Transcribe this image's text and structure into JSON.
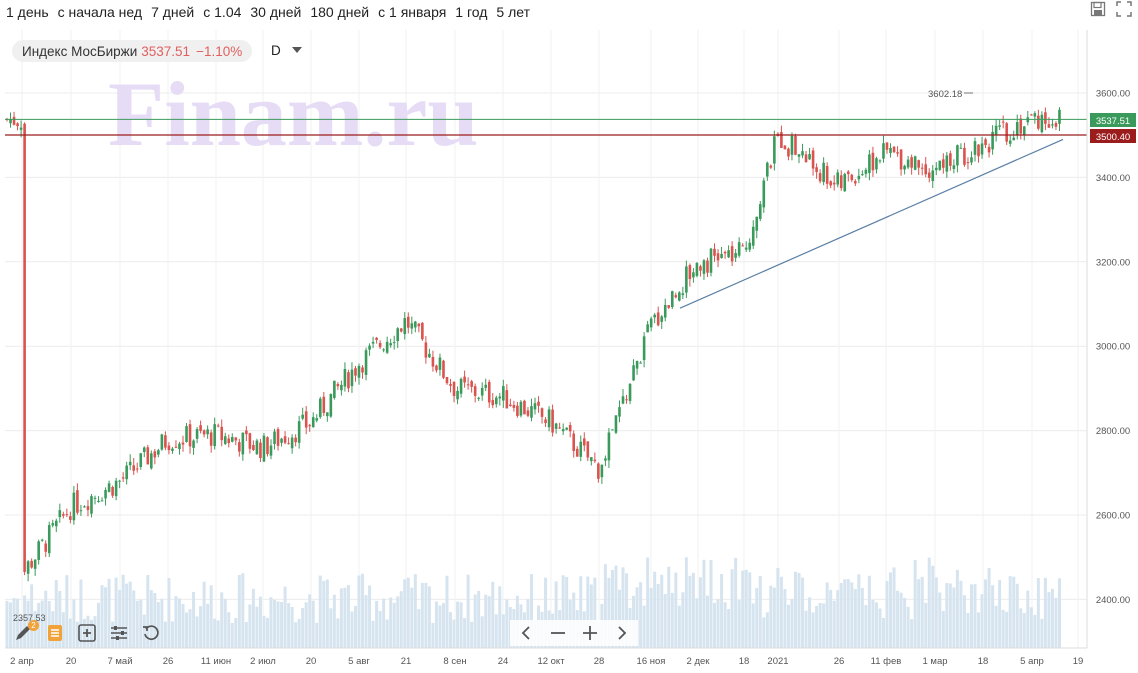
{
  "toolbar": {
    "ranges": [
      "1 день",
      "с начала нед",
      "7 дней",
      "с 1.04",
      "30 дней",
      "180 дней",
      "с 1 января",
      "1 год",
      "5 лет"
    ]
  },
  "instrument": {
    "name": "Индекс МосБиржи",
    "price": "3537.51",
    "change": "−1.10%",
    "interval": "D"
  },
  "watermark": "Finam.ru",
  "icons": {
    "save": "save-icon",
    "fullscreen": "fullscreen-icon",
    "draw": "pencil-icon",
    "indicators": "indicator-list-icon",
    "add_chart": "add-chart-icon",
    "settings": "settings-sliders-icon",
    "reset": "reset-icon",
    "prev": "chevron-left-icon",
    "zoom_out": "minus-icon",
    "zoom_in": "plus-icon",
    "next": "chevron-right-icon"
  },
  "badge": "2",
  "colors": {
    "up": "#3a9a5b",
    "down": "#d9534f",
    "volume": "#d6e4f0",
    "trendline": "#5a7fa6",
    "last_price_line": "#3a9a5b",
    "level_line": "#9b1c1c",
    "watermark": "#e6dcf5"
  },
  "chart_data": {
    "type": "candlestick",
    "y_axis": {
      "ticks": [
        "3600.00",
        "3400.00",
        "3200.00",
        "3000.00",
        "2800.00",
        "2600.00",
        "2400.00"
      ],
      "ylim": [
        2300,
        3700
      ]
    },
    "x_axis": {
      "ticks": [
        "2 апр",
        "20",
        "7 май",
        "26",
        "11 июн",
        "2 июл",
        "20",
        "5 авг",
        "21",
        "8 сен",
        "24",
        "12 окт",
        "28",
        "16 ноя",
        "2 дек",
        "18",
        "2021",
        "26",
        "11 фев",
        "1 мар",
        "18",
        "5 апр",
        "19"
      ]
    },
    "last_price": "3537.51",
    "level": "3500.40",
    "max_annotation": "3602.18",
    "min_annotation": "2357.53",
    "trendline": {
      "from": [
        "16 ноя",
        3090
      ],
      "to": [
        "19",
        3490
      ]
    },
    "close_path": [
      [
        "2 апр",
        2460
      ],
      [
        "20",
        2620
      ],
      [
        "7 май",
        2680
      ],
      [
        "26",
        2780
      ],
      [
        "11 июн",
        2790
      ],
      [
        "2 июл",
        2760
      ],
      [
        "20",
        2820
      ],
      [
        "5 авг",
        2960
      ],
      [
        "21",
        3060
      ],
      [
        "8 сен",
        2900
      ],
      [
        "24",
        2880
      ],
      [
        "12 окт",
        2820
      ],
      [
        "28",
        2710
      ],
      [
        "16 ноя",
        3050
      ],
      [
        "2 дек",
        3200
      ],
      [
        "18",
        3220
      ],
      [
        "2021",
        3500
      ],
      [
        "26",
        3380
      ],
      [
        "11 фев",
        3460
      ],
      [
        "1 мар",
        3420
      ],
      [
        "18",
        3480
      ],
      [
        "5 апр",
        3540
      ],
      [
        "19",
        3537.51
      ]
    ]
  }
}
